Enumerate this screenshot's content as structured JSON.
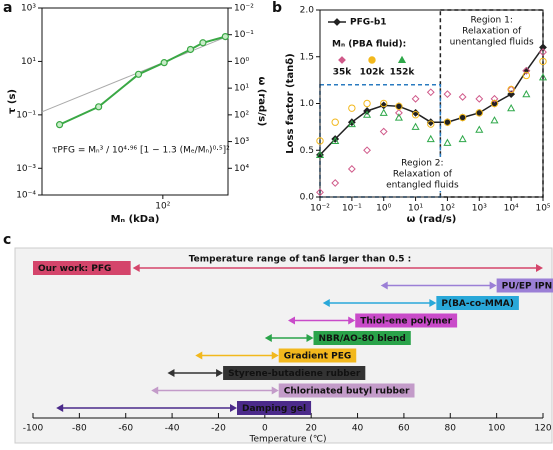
{
  "chart_data": [
    {
      "panel": "a",
      "type": "line",
      "xlabel": "Mₙ (kDa)",
      "ylabel": "τ (s)",
      "y2label": "ω (rad/s)",
      "log_x": true,
      "log_y": true,
      "xlim": [
        17,
        260
      ],
      "xticks": [
        {
          "value": 100,
          "label": "10²"
        }
      ],
      "ylim": [
        0.0001,
        1000
      ],
      "yticks": [
        {
          "value": 0.0001,
          "label": "10⁻⁴"
        },
        {
          "value": 0.001,
          "label": "10⁻³"
        },
        {
          "value": 0.1,
          "label": "10⁻¹"
        },
        {
          "value": 10,
          "label": "10¹"
        },
        {
          "value": 1000,
          "label": "10³"
        }
      ],
      "y2lim": [
        100000,
        0.01
      ],
      "y2ticks": [
        {
          "value": 10000,
          "label": "10⁴"
        },
        {
          "value": 1000,
          "label": "10³"
        },
        {
          "value": 100,
          "label": "10²"
        },
        {
          "value": 10,
          "label": "10¹"
        },
        {
          "value": 1,
          "label": "10⁰"
        },
        {
          "value": 0.1,
          "label": "10⁻¹"
        },
        {
          "value": 0.01,
          "label": "10⁻²"
        }
      ],
      "x": [
        22,
        39,
        70,
        102,
        150,
        180,
        250
      ],
      "series": [
        {
          "color": "#3aa845",
          "values": [
            0.043,
            0.2,
            3.3,
            9,
            28,
            50,
            85
          ]
        }
      ],
      "fit": {
        "color": "#aaaaaa",
        "x": [
          17,
          260
        ],
        "values": [
          0.13,
          88
        ]
      },
      "annotation": "τPFG = Mₙ³ / 10⁴·⁹⁶ [1 − 1.3 (Mₑ/Mₙ)⁰·⁵]²"
    },
    {
      "panel": "b",
      "type": "line",
      "xlabel": "ω (rad/s)",
      "ylabel": "Loss factor (tanδ)",
      "log_x": true,
      "xlim": [
        0.01,
        100000
      ],
      "xticks": [
        {
          "value": 0.01,
          "label": "10⁻²"
        },
        {
          "value": 0.1,
          "label": "10⁻¹"
        },
        {
          "value": 1,
          "label": "10⁰"
        },
        {
          "value": 10,
          "label": "10¹"
        },
        {
          "value": 100,
          "label": "10²"
        },
        {
          "value": 1000,
          "label": "10³"
        },
        {
          "value": 10000,
          "label": "10⁴"
        },
        {
          "value": 100000,
          "label": "10⁵"
        }
      ],
      "ylim": [
        0,
        2
      ],
      "yticks": [
        {
          "value": 0,
          "label": "0.0"
        },
        0.5,
        {
          "value": 1,
          "label": "1.0"
        },
        1.5,
        {
          "value": 2,
          "label": "2.0"
        }
      ],
      "x": [
        0.01,
        0.03,
        0.1,
        0.3,
        1,
        3,
        10,
        30,
        100,
        300,
        1000,
        3000,
        10000,
        30000,
        100000
      ],
      "series": [
        {
          "name": "PFG-b1",
          "color": "#222222",
          "marker": "diamond",
          "filled": true,
          "values": [
            0.45,
            0.62,
            0.8,
            0.92,
            0.98,
            0.97,
            0.9,
            0.8,
            0.8,
            0.85,
            0.9,
            1.0,
            1.1,
            1.35,
            1.6
          ]
        },
        {
          "name": "35k",
          "color": "#d05a8a",
          "marker": "diamond",
          "filled": false,
          "values": [
            0.05,
            0.15,
            0.3,
            0.5,
            0.7,
            0.9,
            1.05,
            1.12,
            1.1,
            1.07,
            1.05,
            1.05,
            1.15,
            1.35,
            1.55
          ]
        },
        {
          "name": "102k",
          "color": "#f2b81d",
          "marker": "circle",
          "filled": false,
          "values": [
            0.6,
            0.8,
            0.95,
            1.0,
            1.0,
            0.97,
            0.88,
            0.78,
            0.8,
            0.85,
            0.9,
            1.0,
            1.15,
            1.3,
            1.45
          ]
        },
        {
          "name": "152k",
          "color": "#2fa84a",
          "marker": "triangle",
          "filled": false,
          "values": [
            0.45,
            0.6,
            0.78,
            0.88,
            0.9,
            0.85,
            0.75,
            0.62,
            0.58,
            0.62,
            0.72,
            0.82,
            0.95,
            1.1,
            1.28
          ]
        }
      ],
      "legend_title": "Mₙ (PBA fluid):",
      "regions": [
        {
          "label_lines": [
            "Region 1:",
            "Relaxation of",
            "unentangled fluids"
          ],
          "x": [
            60,
            100000
          ],
          "y": [
            0,
            2
          ],
          "color": "#222222"
        },
        {
          "label_lines": [
            "Region 2:",
            "Relaxation of",
            "entangled fluids"
          ],
          "x": [
            0.01,
            60
          ],
          "y": [
            0,
            1.2
          ],
          "color": "#2a7bc0"
        }
      ]
    },
    {
      "panel": "c",
      "type": "range",
      "title": "Temperature range of tanδ larger than 0.5 :",
      "xlabel": "Temperature (℃)",
      "xlim": [
        -100,
        120
      ],
      "xticks": [
        -100,
        -80,
        -60,
        -40,
        -20,
        0,
        20,
        40,
        60,
        80,
        100,
        120
      ],
      "categories": [
        "Our work: PFG",
        "PU/EP IPN",
        "P(BA-co-MMA)",
        "Thiol-ene polymer",
        "NBR/AO-80 blend",
        "Gradient PEG",
        "Styrene-butadiene rubber",
        "Chlorinated butyl rubber",
        "Damping gel"
      ],
      "values": [
        [
          -57,
          120
        ],
        [
          50,
          100
        ],
        [
          25,
          74
        ],
        [
          10,
          39
        ],
        [
          0,
          21
        ],
        [
          -30,
          6
        ],
        [
          -42,
          -18
        ],
        [
          -49,
          6
        ],
        [
          -90,
          -12
        ]
      ],
      "colors": [
        "#d4456b",
        "#9b7fd6",
        "#29a8d9",
        "#c94bc9",
        "#2aa34a",
        "#f2b81d",
        "#333333",
        "#c39bc9",
        "#4b2a8a"
      ]
    }
  ]
}
